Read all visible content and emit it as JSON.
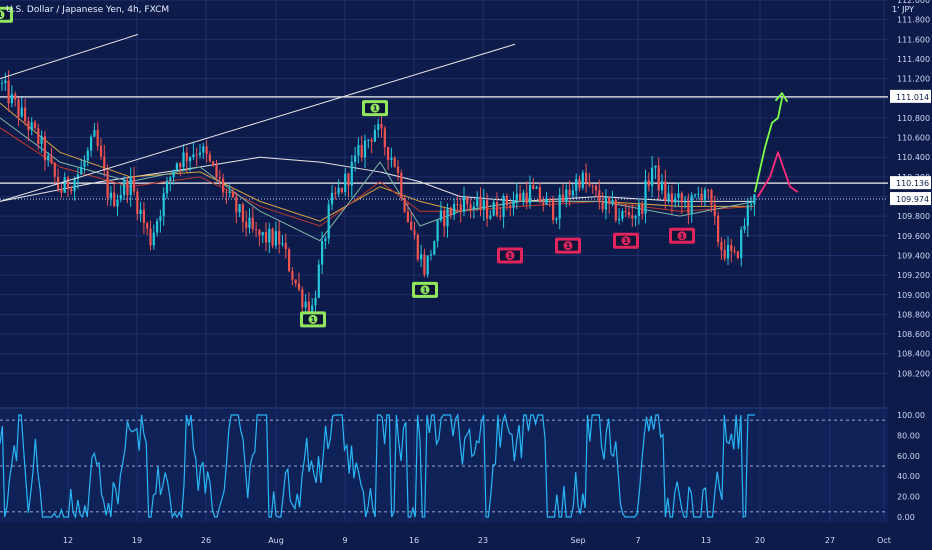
{
  "header": {
    "title": "U.S. Dollar / Japanese Yen, 4h, FXCM",
    "currency_label": "1ʻ JPY"
  },
  "colors": {
    "background": "#0d1b4a",
    "up": "#26c6da",
    "down": "#ef5350",
    "ma_white": "#e6e6e6",
    "ma_orange": "#d9a441",
    "ma_red": "#c0392b",
    "ma_teal": "#7fb6a6",
    "stoch": "#29b6f6",
    "arrow_green": "#7cff4a",
    "arrow_pink": "#ff2d7a",
    "badge_green": "#92e65d",
    "badge_pink": "#e0245e"
  },
  "chart_data": {
    "type": "candlestick",
    "symbol": "USDJPY",
    "timeframe": "4h",
    "ylim": [
      108.0,
      112.0
    ],
    "y_ticks": [
      "112.000",
      "111.800",
      "111.600",
      "111.400",
      "111.200",
      "110.800",
      "110.600",
      "110.400",
      "110.200",
      "109.800",
      "109.600",
      "109.400",
      "109.200",
      "109.000",
      "108.800",
      "108.600",
      "108.400",
      "108.200"
    ],
    "x_ticks": [
      "12",
      "19",
      "26",
      "Aug",
      "9",
      "16",
      "23",
      "Sep",
      "7",
      "13",
      "20",
      "27",
      "Oct"
    ],
    "price_labels": [
      {
        "value": 111.014,
        "text": "111.014",
        "style": "white"
      },
      {
        "value": 110.136,
        "text": "110.136",
        "style": "white"
      },
      {
        "value": 109.974,
        "text": "109.974",
        "style": "dotted"
      }
    ],
    "horizontal_lines": [
      111.014,
      110.136
    ],
    "anchors": [
      {
        "x": 0,
        "y": 111.15
      },
      {
        "x": 40,
        "y": 110.55
      },
      {
        "x": 60,
        "y": 110.05
      },
      {
        "x": 80,
        "y": 110.25
      },
      {
        "x": 95,
        "y": 110.6
      },
      {
        "x": 110,
        "y": 109.95
      },
      {
        "x": 130,
        "y": 110.15
      },
      {
        "x": 150,
        "y": 109.55
      },
      {
        "x": 175,
        "y": 110.35
      },
      {
        "x": 200,
        "y": 110.5
      },
      {
        "x": 230,
        "y": 109.95
      },
      {
        "x": 255,
        "y": 109.6
      },
      {
        "x": 280,
        "y": 109.55
      },
      {
        "x": 300,
        "y": 109.0
      },
      {
        "x": 312,
        "y": 108.85
      },
      {
        "x": 330,
        "y": 109.9
      },
      {
        "x": 345,
        "y": 110.15
      },
      {
        "x": 360,
        "y": 110.45
      },
      {
        "x": 375,
        "y": 110.7
      },
      {
        "x": 395,
        "y": 110.35
      },
      {
        "x": 410,
        "y": 109.7
      },
      {
        "x": 425,
        "y": 109.25
      },
      {
        "x": 440,
        "y": 109.75
      },
      {
        "x": 460,
        "y": 109.95
      },
      {
        "x": 490,
        "y": 109.85
      },
      {
        "x": 510,
        "y": 109.95
      },
      {
        "x": 530,
        "y": 110.05
      },
      {
        "x": 555,
        "y": 109.85
      },
      {
        "x": 580,
        "y": 110.2
      },
      {
        "x": 600,
        "y": 109.95
      },
      {
        "x": 620,
        "y": 109.8
      },
      {
        "x": 640,
        "y": 109.85
      },
      {
        "x": 652,
        "y": 110.3
      },
      {
        "x": 665,
        "y": 110.0
      },
      {
        "x": 690,
        "y": 109.9
      },
      {
        "x": 705,
        "y": 110.1
      },
      {
        "x": 720,
        "y": 109.5
      },
      {
        "x": 735,
        "y": 109.35
      },
      {
        "x": 750,
        "y": 109.95
      },
      {
        "x": 755,
        "y": 110.1
      }
    ],
    "moving_averages": [
      {
        "name": "MA1",
        "color_key": "ma_white",
        "points": [
          {
            "x": 0,
            "y": 109.95
          },
          {
            "x": 100,
            "y": 110.15
          },
          {
            "x": 200,
            "y": 110.3
          },
          {
            "x": 260,
            "y": 110.4
          },
          {
            "x": 320,
            "y": 110.35
          },
          {
            "x": 380,
            "y": 110.25
          },
          {
            "x": 420,
            "y": 110.15
          },
          {
            "x": 460,
            "y": 110.0
          },
          {
            "x": 520,
            "y": 109.95
          },
          {
            "x": 600,
            "y": 110.0
          },
          {
            "x": 680,
            "y": 109.95
          },
          {
            "x": 755,
            "y": 109.95
          }
        ]
      },
      {
        "name": "MA2",
        "color_key": "ma_orange",
        "points": [
          {
            "x": 0,
            "y": 110.95
          },
          {
            "x": 60,
            "y": 110.45
          },
          {
            "x": 130,
            "y": 110.2
          },
          {
            "x": 200,
            "y": 110.25
          },
          {
            "x": 260,
            "y": 109.95
          },
          {
            "x": 320,
            "y": 109.75
          },
          {
            "x": 380,
            "y": 110.1
          },
          {
            "x": 420,
            "y": 109.95
          },
          {
            "x": 460,
            "y": 109.85
          },
          {
            "x": 520,
            "y": 109.95
          },
          {
            "x": 600,
            "y": 109.95
          },
          {
            "x": 680,
            "y": 109.9
          },
          {
            "x": 755,
            "y": 109.9
          }
        ]
      },
      {
        "name": "MA3",
        "color_key": "ma_red",
        "points": [
          {
            "x": 0,
            "y": 110.7
          },
          {
            "x": 60,
            "y": 110.3
          },
          {
            "x": 130,
            "y": 110.1
          },
          {
            "x": 200,
            "y": 110.2
          },
          {
            "x": 260,
            "y": 109.9
          },
          {
            "x": 320,
            "y": 109.7
          },
          {
            "x": 380,
            "y": 110.15
          },
          {
            "x": 420,
            "y": 109.85
          },
          {
            "x": 460,
            "y": 109.85
          },
          {
            "x": 520,
            "y": 109.9
          },
          {
            "x": 600,
            "y": 109.95
          },
          {
            "x": 680,
            "y": 109.85
          },
          {
            "x": 755,
            "y": 109.9
          }
        ]
      },
      {
        "name": "MA4",
        "color_key": "ma_teal",
        "points": [
          {
            "x": 0,
            "y": 110.8
          },
          {
            "x": 60,
            "y": 110.35
          },
          {
            "x": 130,
            "y": 110.15
          },
          {
            "x": 200,
            "y": 110.3
          },
          {
            "x": 260,
            "y": 109.85
          },
          {
            "x": 320,
            "y": 109.55
          },
          {
            "x": 380,
            "y": 110.35
          },
          {
            "x": 420,
            "y": 109.7
          },
          {
            "x": 460,
            "y": 109.85
          },
          {
            "x": 520,
            "y": 109.95
          },
          {
            "x": 600,
            "y": 109.95
          },
          {
            "x": 680,
            "y": 109.8
          },
          {
            "x": 755,
            "y": 109.95
          }
        ]
      }
    ],
    "trendlines": [
      {
        "points": [
          {
            "x": 0,
            "y": 111.2
          },
          {
            "x": 138,
            "y": 111.65
          }
        ]
      },
      {
        "points": [
          {
            "x": 0,
            "y": 109.95
          },
          {
            "x": 515,
            "y": 111.55
          }
        ]
      }
    ],
    "signal_badges": [
      {
        "x": 0,
        "y": 111.85,
        "kind": "green"
      },
      {
        "x": 375,
        "y": 110.9,
        "kind": "green"
      },
      {
        "x": 313,
        "y": 108.75,
        "kind": "green"
      },
      {
        "x": 425,
        "y": 109.05,
        "kind": "green"
      },
      {
        "x": 510,
        "y": 109.4,
        "kind": "pink"
      },
      {
        "x": 568,
        "y": 109.5,
        "kind": "pink"
      },
      {
        "x": 626,
        "y": 109.55,
        "kind": "pink"
      },
      {
        "x": 682,
        "y": 109.6,
        "kind": "pink"
      }
    ],
    "forecast_arrows": [
      {
        "kind": "green",
        "points": [
          {
            "x": 755,
            "y": 110.05
          },
          {
            "x": 765,
            "y": 110.5
          },
          {
            "x": 772,
            "y": 110.75
          },
          {
            "x": 778,
            "y": 110.8
          },
          {
            "x": 782,
            "y": 111.0
          }
        ]
      },
      {
        "kind": "pink",
        "points": [
          {
            "x": 758,
            "y": 110.0
          },
          {
            "x": 770,
            "y": 110.2
          },
          {
            "x": 778,
            "y": 110.45
          },
          {
            "x": 790,
            "y": 110.1
          },
          {
            "x": 797,
            "y": 110.05
          }
        ]
      }
    ],
    "stochastic": {
      "ylim": [
        0,
        100
      ],
      "y_ticks": [
        "100.00",
        "80.00",
        "60.00",
        "40.00",
        "20.00",
        "0.00"
      ],
      "levels": [
        95,
        50,
        5
      ],
      "series_seed": 7,
      "length": 320
    }
  }
}
